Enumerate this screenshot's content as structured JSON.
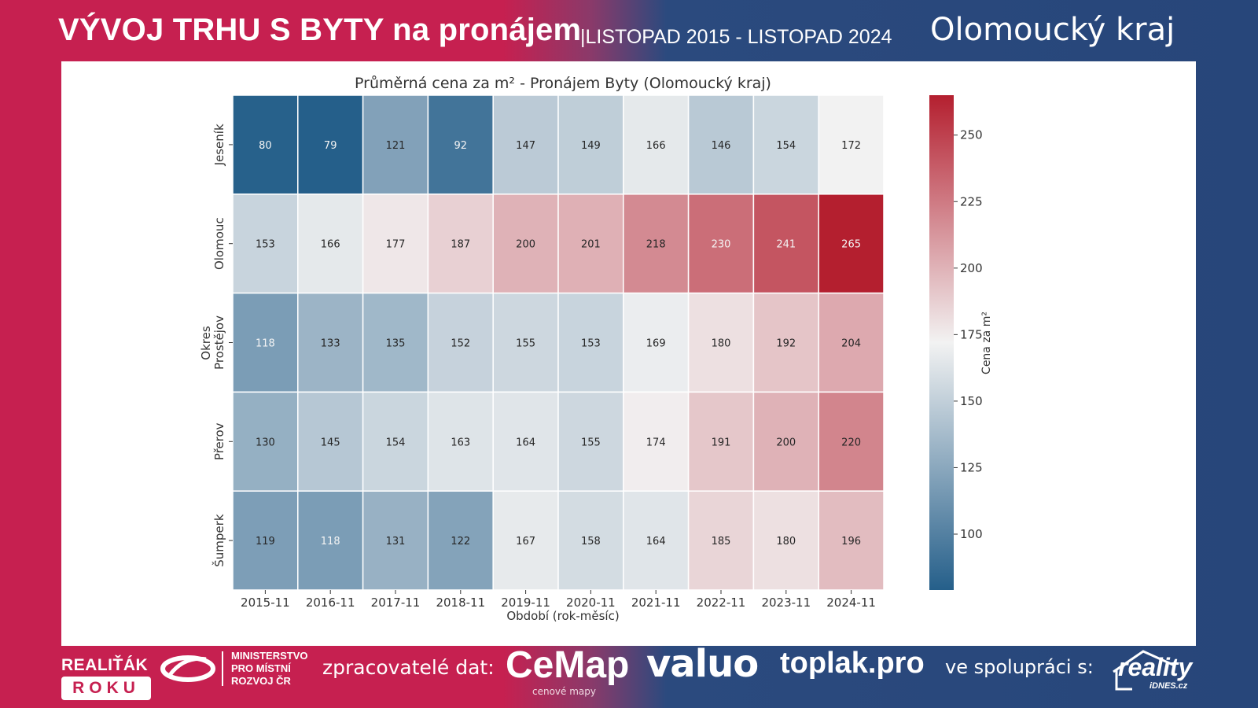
{
  "header": {
    "title_main": "VÝVOJ TRHU S BYTY na pronájem",
    "title_period": "|LISTOPAD 2015 - LISTOPAD 2024",
    "title_region": "Olomoucký kraj"
  },
  "chart_data": {
    "type": "heatmap",
    "title": "Průměrná cena za m² - Pronájem Byty (Olomoucký kraj)",
    "xlabel": "Období (rok-měsíc)",
    "ylabel": "Okres",
    "x": [
      "2015-11",
      "2016-11",
      "2017-11",
      "2018-11",
      "2019-11",
      "2020-11",
      "2021-11",
      "2022-11",
      "2023-11",
      "2024-11"
    ],
    "y": [
      "Jeseník",
      "Olomouc",
      "Prostějov",
      "Přerov",
      "Šumperk"
    ],
    "values": [
      [
        80,
        79,
        121,
        92,
        147,
        149,
        166,
        146,
        154,
        172
      ],
      [
        153,
        166,
        177,
        187,
        200,
        201,
        218,
        230,
        241,
        265
      ],
      [
        118,
        133,
        135,
        152,
        155,
        153,
        169,
        180,
        192,
        204
      ],
      [
        130,
        145,
        154,
        163,
        164,
        155,
        174,
        191,
        200,
        220
      ],
      [
        119,
        118,
        131,
        122,
        167,
        158,
        164,
        185,
        180,
        196
      ]
    ],
    "colorbar": {
      "label": "Cena za m²",
      "range": [
        79,
        265
      ],
      "center": 172,
      "ticks": [
        100,
        125,
        150,
        175,
        200,
        225,
        250
      ],
      "colors": {
        "low": "#255f8a",
        "mid": "#f2f2f2",
        "high": "#b41f2f"
      }
    }
  },
  "footer": {
    "realitak_line1": "REALIŤÁK",
    "realitak_line2": "ROKU",
    "ministry": "MINISTERSTVO\nPRO MÍSTNÍ\nROZVOJ ČR",
    "processors_label": "zpracovatelé dat:",
    "cemap": "CeMap",
    "cemap_sub": "cenové mapy",
    "valuo": "valuo",
    "toplak": "toplak.pro",
    "cooperation_label": "ve spolupráci s:",
    "reality": "reality",
    "reality_sub": "iDNES.cz"
  }
}
